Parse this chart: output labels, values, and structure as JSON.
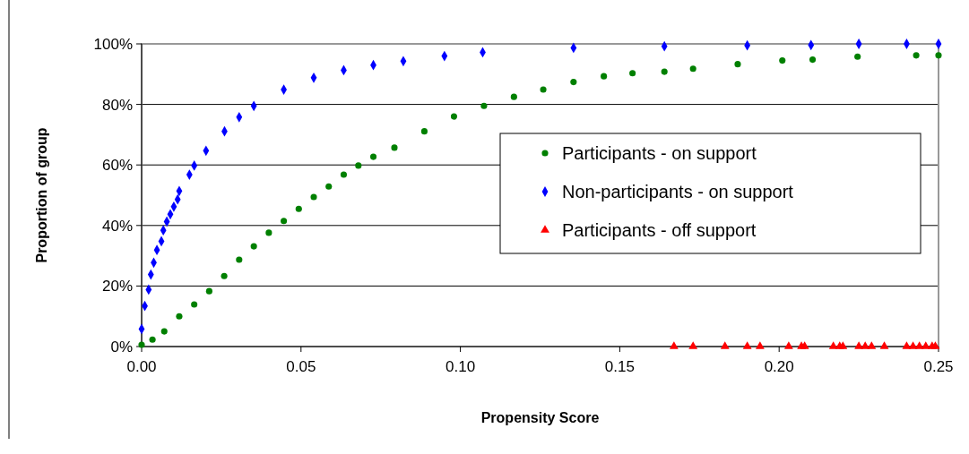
{
  "chart_data": {
    "type": "scatter",
    "xlabel": "Propensity Score",
    "ylabel": "Proportion of group",
    "xlim": [
      0,
      0.25
    ],
    "xticks": [
      {
        "value": 0,
        "label": "0.00"
      },
      {
        "value": 0.05,
        "label": "0.05"
      },
      {
        "value": 0.1,
        "label": "0.10"
      },
      {
        "value": 0.15,
        "label": "0.15"
      },
      {
        "value": 0.2,
        "label": "0.20"
      },
      {
        "value": 0.25,
        "label": "0.25"
      }
    ],
    "ylim": [
      0,
      100
    ],
    "yticks": [
      {
        "value": 0,
        "label": "0%"
      },
      {
        "value": 20,
        "label": "20%"
      },
      {
        "value": 40,
        "label": "40%"
      },
      {
        "value": 60,
        "label": "60%"
      },
      {
        "value": 80,
        "label": "80%"
      },
      {
        "value": 100,
        "label": "100%"
      }
    ],
    "grid": "y",
    "legend": "right",
    "series": [
      {
        "name": "Participants - on support",
        "color": "#008000",
        "marker": "circle",
        "x": [
          0,
          0.0034,
          0.0071,
          0.0118,
          0.0165,
          0.0212,
          0.0259,
          0.0306,
          0.0352,
          0.0399,
          0.0446,
          0.0493,
          0.054,
          0.0587,
          0.0634,
          0.068,
          0.0727,
          0.0793,
          0.0887,
          0.098,
          0.1074,
          0.1168,
          0.126,
          0.1355,
          0.145,
          0.154,
          0.164,
          0.173,
          0.187,
          0.201,
          0.2105,
          0.2246,
          0.243,
          0.25
        ],
        "values": [
          0.6,
          2.3,
          5,
          10,
          13.9,
          18.3,
          23.3,
          28.7,
          33.1,
          37.6,
          41.5,
          45.5,
          49.4,
          52.9,
          56.8,
          59.8,
          62.7,
          65.7,
          71.1,
          76,
          79.5,
          82.5,
          84.9,
          87.4,
          89.3,
          90.3,
          90.8,
          91.8,
          93.3,
          94.5,
          94.8,
          95.8,
          96.2,
          96.2
        ]
      },
      {
        "name": "Non-participants - on support",
        "color": "#0000ff",
        "marker": "diamond",
        "x": [
          0,
          0.001,
          0.0022,
          0.0029,
          0.0038,
          0.0048,
          0.0062,
          0.0068,
          0.0079,
          0.009,
          0.0101,
          0.0113,
          0.0118,
          0.015,
          0.0165,
          0.0202,
          0.026,
          0.0306,
          0.0352,
          0.0446,
          0.054,
          0.0634,
          0.0727,
          0.0821,
          0.095,
          0.107,
          0.1355,
          0.164,
          0.19,
          0.21,
          0.225,
          0.24,
          0.25
        ],
        "values": [
          5.8,
          13.4,
          18.8,
          23.8,
          27.7,
          31.9,
          34.8,
          38.4,
          41.3,
          43.7,
          46.2,
          48.6,
          51.4,
          56.8,
          59.8,
          64.7,
          71.1,
          75.8,
          79.5,
          84.9,
          88.8,
          91.3,
          93,
          94.3,
          96,
          97.2,
          98.7,
          99.2,
          99.5,
          99.6,
          100,
          100,
          100
        ]
      },
      {
        "name": "Participants - off support",
        "color": "#ff0000",
        "marker": "triangle",
        "x": [
          0.167,
          0.173,
          0.183,
          0.19,
          0.194,
          0.203,
          0.207,
          0.208,
          0.217,
          0.219,
          0.22,
          0.225,
          0.227,
          0.229,
          0.233,
          0.24,
          0.242,
          0.244,
          0.246,
          0.248,
          0.249
        ],
        "values": [
          0,
          0,
          0,
          0,
          0,
          0,
          0,
          0,
          0,
          0,
          0,
          0,
          0,
          0,
          0,
          0,
          0,
          0,
          0,
          0,
          0
        ]
      }
    ]
  }
}
